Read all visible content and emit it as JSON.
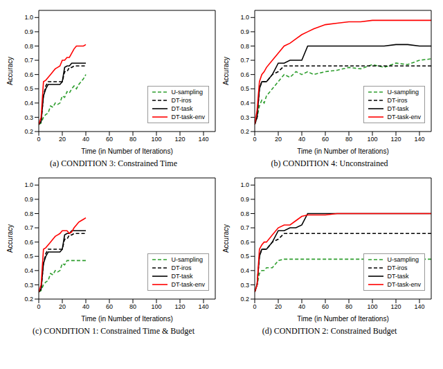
{
  "chart_data": [
    {
      "type": "line",
      "title": "(a) CONDITION 3: Constrained Time",
      "x_label": "Time (in Number of Iterations)",
      "y_label": "Accuracy",
      "x": [
        0,
        2,
        4,
        6,
        8,
        10,
        12,
        14,
        16,
        18,
        20,
        22,
        24,
        26,
        28,
        30,
        32,
        34,
        36,
        38,
        40
      ],
      "xlim": [
        0,
        150
      ],
      "xticks": [
        0,
        20,
        40,
        60,
        80,
        100,
        120,
        140
      ],
      "ylim": [
        0.2,
        1.05
      ],
      "yticks": [
        0.2,
        0.3,
        0.4,
        0.5,
        0.6,
        0.7,
        0.8,
        0.9,
        {
          "value": 1,
          "label": "1.0"
        }
      ],
      "legend": "lower right",
      "series": [
        {
          "name": "U-sampling",
          "color": "#2e9e2e",
          "line_style": "dashed",
          "values": [
            0.25,
            0.26,
            0.3,
            0.32,
            0.33,
            0.38,
            0.37,
            0.4,
            0.39,
            0.4,
            0.45,
            0.44,
            0.48,
            0.47,
            0.5,
            0.52,
            0.5,
            0.53,
            0.55,
            0.57,
            0.6
          ]
        },
        {
          "name": "DT-iros",
          "color": "#000000",
          "line_style": "dashed",
          "values": [
            0.25,
            0.27,
            0.45,
            0.52,
            0.55,
            0.55,
            0.55,
            0.55,
            0.55,
            0.55,
            0.55,
            0.62,
            0.62,
            0.65,
            0.65,
            0.66,
            0.66,
            0.66,
            0.66,
            0.66,
            0.66
          ]
        },
        {
          "name": "DT-task",
          "color": "#000000",
          "line_style": "solid",
          "values": [
            0.25,
            0.27,
            0.45,
            0.5,
            0.53,
            0.53,
            0.53,
            0.53,
            0.53,
            0.53,
            0.55,
            0.65,
            0.66,
            0.66,
            0.68,
            0.68,
            0.68,
            0.68,
            0.68,
            0.68,
            0.68
          ]
        },
        {
          "name": "DT-task-env",
          "color": "#ff0000",
          "line_style": "solid",
          "values": [
            0.25,
            0.3,
            0.55,
            0.56,
            0.58,
            0.6,
            0.62,
            0.64,
            0.65,
            0.66,
            0.7,
            0.7,
            0.72,
            0.72,
            0.75,
            0.78,
            0.8,
            0.8,
            0.8,
            0.8,
            0.81
          ]
        }
      ]
    },
    {
      "type": "line",
      "title": "(b) CONDITION 4: Unconstrained",
      "x_label": "Time (in Number of Iterations)",
      "y_label": "Accuracy",
      "x": [
        0,
        2,
        4,
        6,
        8,
        10,
        15,
        20,
        25,
        30,
        35,
        40,
        45,
        50,
        60,
        70,
        80,
        90,
        100,
        110,
        120,
        130,
        140,
        150
      ],
      "xlim": [
        0,
        150
      ],
      "xticks": [
        0,
        20,
        40,
        60,
        80,
        100,
        120,
        140
      ],
      "ylim": [
        0.2,
        1.05
      ],
      "yticks": [
        0.2,
        0.3,
        0.4,
        0.5,
        0.6,
        0.7,
        0.8,
        0.9,
        {
          "value": 1,
          "label": "1.0"
        }
      ],
      "legend": "lower right",
      "series": [
        {
          "name": "U-sampling",
          "color": "#2e9e2e",
          "line_style": "dashed",
          "values": [
            0.25,
            0.3,
            0.38,
            0.42,
            0.4,
            0.45,
            0.5,
            0.55,
            0.6,
            0.58,
            0.62,
            0.6,
            0.62,
            0.6,
            0.62,
            0.63,
            0.65,
            0.64,
            0.67,
            0.65,
            0.68,
            0.67,
            0.7,
            0.71
          ]
        },
        {
          "name": "DT-iros",
          "color": "#000000",
          "line_style": "dashed",
          "values": [
            0.25,
            0.3,
            0.5,
            0.55,
            0.55,
            0.55,
            0.6,
            0.62,
            0.66,
            0.66,
            0.66,
            0.66,
            0.66,
            0.66,
            0.66,
            0.66,
            0.66,
            0.66,
            0.66,
            0.66,
            0.66,
            0.66,
            0.66,
            0.66
          ]
        },
        {
          "name": "DT-task",
          "color": "#000000",
          "line_style": "solid",
          "values": [
            0.25,
            0.3,
            0.5,
            0.55,
            0.55,
            0.55,
            0.6,
            0.68,
            0.68,
            0.7,
            0.7,
            0.7,
            0.8,
            0.8,
            0.8,
            0.8,
            0.8,
            0.8,
            0.8,
            0.8,
            0.81,
            0.81,
            0.8,
            0.8
          ]
        },
        {
          "name": "DT-task-env",
          "color": "#ff0000",
          "line_style": "solid",
          "values": [
            0.25,
            0.35,
            0.55,
            0.6,
            0.62,
            0.65,
            0.7,
            0.75,
            0.8,
            0.82,
            0.85,
            0.88,
            0.9,
            0.92,
            0.95,
            0.96,
            0.97,
            0.97,
            0.98,
            0.98,
            0.98,
            0.98,
            0.98,
            0.98
          ]
        }
      ]
    },
    {
      "type": "line",
      "title": "(c) CONDITION 1: Constrained Time & Budget",
      "x_label": "Time (in Number of Iterations)",
      "y_label": "Accuracy",
      "x": [
        0,
        2,
        4,
        6,
        8,
        10,
        12,
        14,
        16,
        18,
        20,
        22,
        24,
        26,
        28,
        30,
        32,
        34,
        36,
        38,
        40
      ],
      "xlim": [
        0,
        150
      ],
      "xticks": [
        0,
        20,
        40,
        60,
        80,
        100,
        120,
        140
      ],
      "ylim": [
        0.2,
        1.05
      ],
      "yticks": [
        0.2,
        0.3,
        0.4,
        0.5,
        0.6,
        0.7,
        0.8,
        0.9,
        {
          "value": 1,
          "label": "1.0"
        }
      ],
      "legend": "lower right",
      "series": [
        {
          "name": "U-sampling",
          "color": "#2e9e2e",
          "line_style": "dashed",
          "values": [
            0.25,
            0.26,
            0.3,
            0.32,
            0.33,
            0.38,
            0.37,
            0.4,
            0.39,
            0.4,
            0.45,
            0.44,
            0.47,
            0.47,
            0.47,
            0.47,
            0.47,
            0.47,
            0.47,
            0.47,
            0.47
          ]
        },
        {
          "name": "DT-iros",
          "color": "#000000",
          "line_style": "dashed",
          "values": [
            0.25,
            0.27,
            0.45,
            0.52,
            0.55,
            0.55,
            0.55,
            0.55,
            0.55,
            0.55,
            0.55,
            0.62,
            0.62,
            0.65,
            0.65,
            0.66,
            0.66,
            0.66,
            0.66,
            0.66,
            0.66
          ]
        },
        {
          "name": "DT-task",
          "color": "#000000",
          "line_style": "solid",
          "values": [
            0.25,
            0.27,
            0.45,
            0.5,
            0.53,
            0.53,
            0.53,
            0.53,
            0.53,
            0.53,
            0.55,
            0.65,
            0.66,
            0.66,
            0.68,
            0.68,
            0.68,
            0.68,
            0.68,
            0.68,
            0.68
          ]
        },
        {
          "name": "DT-task-env",
          "color": "#ff0000",
          "line_style": "solid",
          "values": [
            0.25,
            0.3,
            0.55,
            0.56,
            0.58,
            0.6,
            0.62,
            0.64,
            0.65,
            0.66,
            0.68,
            0.68,
            0.68,
            0.66,
            0.67,
            0.7,
            0.72,
            0.74,
            0.75,
            0.76,
            0.77
          ]
        }
      ]
    },
    {
      "type": "line",
      "title": "(d) CONDITION 2: Constrained Budget",
      "x_label": "Time (in Number of Iterations)",
      "y_label": "Accuracy",
      "x": [
        0,
        2,
        4,
        6,
        8,
        10,
        15,
        20,
        25,
        30,
        35,
        40,
        45,
        50,
        60,
        70,
        80,
        90,
        100,
        110,
        120,
        130,
        140,
        150
      ],
      "xlim": [
        0,
        150
      ],
      "xticks": [
        0,
        20,
        40,
        60,
        80,
        100,
        120,
        140
      ],
      "ylim": [
        0.2,
        1.05
      ],
      "yticks": [
        0.2,
        0.3,
        0.4,
        0.5,
        0.6,
        0.7,
        0.8,
        0.9,
        {
          "value": 1,
          "label": "1.0"
        }
      ],
      "legend": "lower right",
      "series": [
        {
          "name": "U-sampling",
          "color": "#2e9e2e",
          "line_style": "dashed",
          "values": [
            0.25,
            0.3,
            0.38,
            0.4,
            0.4,
            0.42,
            0.42,
            0.47,
            0.48,
            0.48,
            0.48,
            0.48,
            0.48,
            0.48,
            0.48,
            0.48,
            0.48,
            0.48,
            0.48,
            0.48,
            0.48,
            0.48,
            0.48,
            0.48
          ]
        },
        {
          "name": "DT-iros",
          "color": "#000000",
          "line_style": "dashed",
          "values": [
            0.25,
            0.3,
            0.5,
            0.55,
            0.55,
            0.55,
            0.6,
            0.62,
            0.66,
            0.66,
            0.66,
            0.66,
            0.66,
            0.66,
            0.66,
            0.66,
            0.66,
            0.66,
            0.66,
            0.66,
            0.66,
            0.66,
            0.66,
            0.66
          ]
        },
        {
          "name": "DT-task",
          "color": "#000000",
          "line_style": "solid",
          "values": [
            0.25,
            0.3,
            0.5,
            0.55,
            0.55,
            0.55,
            0.6,
            0.68,
            0.68,
            0.7,
            0.7,
            0.72,
            0.8,
            0.8,
            0.8,
            0.8,
            0.8,
            0.8,
            0.8,
            0.8,
            0.8,
            0.8,
            0.8,
            0.8
          ]
        },
        {
          "name": "DT-task-env",
          "color": "#ff0000",
          "line_style": "solid",
          "values": [
            0.25,
            0.3,
            0.55,
            0.58,
            0.6,
            0.6,
            0.65,
            0.7,
            0.72,
            0.72,
            0.75,
            0.78,
            0.79,
            0.79,
            0.79,
            0.8,
            0.8,
            0.8,
            0.8,
            0.8,
            0.8,
            0.8,
            0.8,
            0.8
          ]
        }
      ]
    }
  ]
}
